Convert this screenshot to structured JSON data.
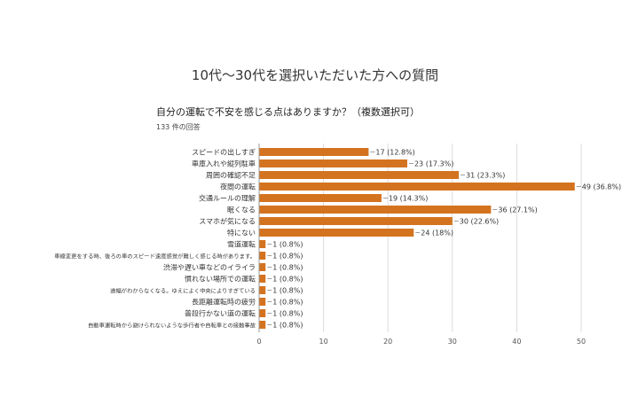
{
  "heading": "10代～30代を選択いただいた方への質問",
  "chart_data": {
    "type": "bar",
    "orientation": "horizontal",
    "title": "自分の運転で不安を感じる点はありますか？（複数選択可）",
    "subtitle": "133 件の回答",
    "categories": [
      "スピードの出しすぎ",
      "車庫入れや縦列駐車",
      "周囲の確認不足",
      "夜間の運転",
      "交通ルールの理解",
      "眠くなる",
      "スマホが気になる",
      "特にない",
      "雪道運転",
      "車線変更をする時、後ろの車のスピード速度感覚が難しく感じる時があります。",
      "渋滞や遅い車などのイライラ",
      "慣れない場所での運転",
      "道幅がわからなくなる。ゆえによく中央によりすぎている",
      "長距離運転時の疲労",
      "普段行かない道の運転",
      "自動車運転時から避けられないような歩行者や自転車との接触事故"
    ],
    "values": [
      17,
      23,
      31,
      49,
      19,
      36,
      30,
      24,
      1,
      1,
      1,
      1,
      1,
      1,
      1,
      1
    ],
    "data_labels": [
      "17 (12.8%)",
      "23 (17.3%)",
      "31 (23.3%)",
      "49 (36.8%)",
      "19 (14.3%)",
      "36 (27.1%)",
      "30 (22.6%)",
      "24 (18%)",
      "1 (0.8%)",
      "1 (0.8%)",
      "1 (0.8%)",
      "1 (0.8%)",
      "1 (0.8%)",
      "1 (0.8%)",
      "1 (0.8%)",
      "1 (0.8%)"
    ],
    "xlim": [
      0,
      50
    ],
    "xticks": [
      "0",
      "10",
      "20",
      "30",
      "40",
      "50"
    ],
    "grid": true,
    "bar_color": "#d4731f",
    "grid_color": "#dddddd",
    "text_color": "#333333"
  }
}
